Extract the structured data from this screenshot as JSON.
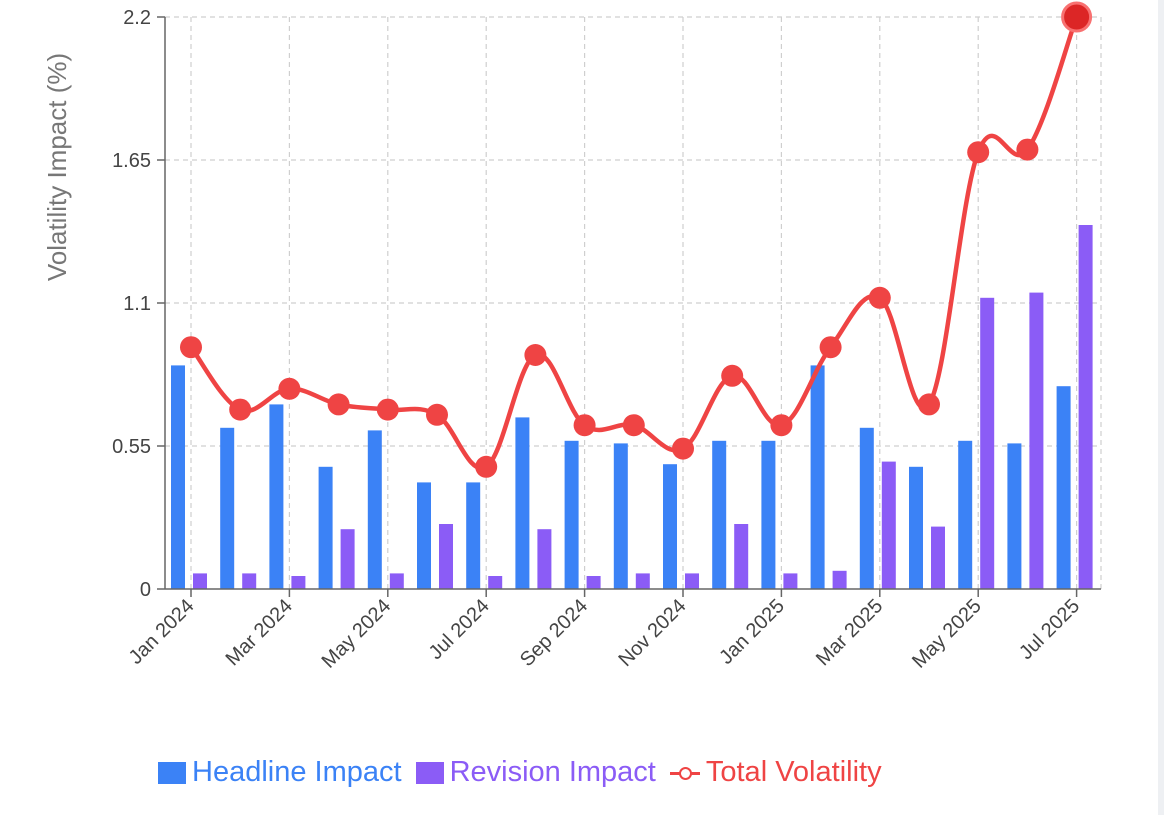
{
  "chart_data": {
    "type": "bar",
    "ylabel": "Volatility Impact (%)",
    "ylim": [
      0,
      2.2
    ],
    "yticks": [
      "0",
      "0.55",
      "1.1",
      "1.65",
      "2.2"
    ],
    "categories": [
      "Jan 2024",
      "Feb 2024",
      "Mar 2024",
      "Apr 2024",
      "May 2024",
      "Jun 2024",
      "Jul 2024",
      "Aug 2024",
      "Sep 2024",
      "Oct 2024",
      "Nov 2024",
      "Dec 2024",
      "Jan 2025",
      "Feb 2025",
      "Mar 2025",
      "Apr 2025",
      "May 2025",
      "Jun 2025",
      "Jul 2025"
    ],
    "xtick_labels": [
      "Jan 2024",
      "Mar 2024",
      "May 2024",
      "Jul 2024",
      "Sep 2024",
      "Nov 2024",
      "Jan 2025",
      "Mar 2025",
      "May 2025",
      "Jul 2025"
    ],
    "grid": true,
    "legend_position": "bottom",
    "series": [
      {
        "name": "Headline Impact",
        "kind": "bar",
        "color": "#3b82f6",
        "values": [
          0.86,
          0.62,
          0.71,
          0.47,
          0.61,
          0.41,
          0.41,
          0.66,
          0.57,
          0.56,
          0.48,
          0.57,
          0.57,
          0.86,
          0.62,
          0.47,
          0.57,
          0.56,
          0.78
        ]
      },
      {
        "name": "Revision Impact",
        "kind": "bar",
        "color": "#8b5cf6",
        "values": [
          0.06,
          0.06,
          0.05,
          0.23,
          0.06,
          0.25,
          0.05,
          0.23,
          0.05,
          0.06,
          0.06,
          0.25,
          0.06,
          0.07,
          0.49,
          0.24,
          1.12,
          1.14,
          1.4
        ]
      },
      {
        "name": "Total Volatility",
        "kind": "line",
        "color": "#ef4444",
        "values": [
          0.93,
          0.69,
          0.77,
          0.71,
          0.69,
          0.67,
          0.47,
          0.9,
          0.63,
          0.63,
          0.54,
          0.82,
          0.63,
          0.93,
          1.12,
          0.71,
          1.68,
          1.69,
          2.2
        ]
      }
    ]
  },
  "legend": {
    "headline_label": "Headline Impact",
    "revision_label": "Revision Impact",
    "total_label": "Total Volatility",
    "headline_color": "#3b82f6",
    "revision_color": "#8b5cf6",
    "total_color": "#ef4444"
  }
}
